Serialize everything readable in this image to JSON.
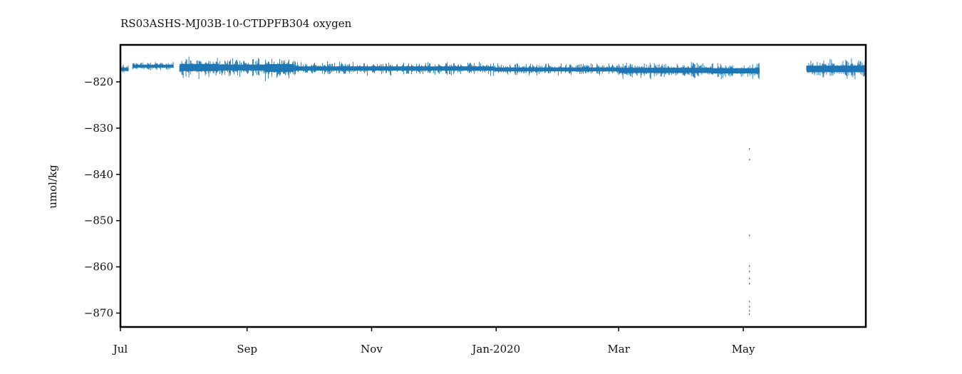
{
  "chart_data": {
    "type": "scatter",
    "title": "RS03ASHS-MJ03B-10-CTDPFB304 oxygen",
    "xlabel": "",
    "ylabel": "umol/kg",
    "x_type": "date",
    "xlim": [
      "2019-07-01",
      "2020-06-30"
    ],
    "ylim": [
      -873,
      -812
    ],
    "grid": false,
    "legend": "none",
    "x_ticks": [
      {
        "date": "2019-07-01",
        "label": "Jul"
      },
      {
        "date": "2019-09-01",
        "label": "Sep"
      },
      {
        "date": "2019-11-01",
        "label": "Nov"
      },
      {
        "date": "2020-01-01",
        "label": "Jan-2020"
      },
      {
        "date": "2020-03-01",
        "label": "Mar"
      },
      {
        "date": "2020-05-01",
        "label": "May"
      }
    ],
    "y_ticks": [
      {
        "value": -820,
        "label": "−820"
      },
      {
        "value": -830,
        "label": "−830"
      },
      {
        "value": -840,
        "label": "−840"
      },
      {
        "value": -850,
        "label": "−850"
      },
      {
        "value": -860,
        "label": "−860"
      },
      {
        "value": -870,
        "label": "−870"
      }
    ],
    "colors": {
      "series": "#1f77b4",
      "axes": "#000000"
    },
    "series": [
      {
        "segments": [
          {
            "start": "2019-07-01",
            "end": "2019-07-05",
            "center": -817.3,
            "spread": 1.0
          },
          {
            "start": "2019-07-07",
            "end": "2019-07-27",
            "center": -816.6,
            "spread": 0.9
          },
          {
            "start": "2019-07-30",
            "end": "2019-08-18",
            "center": -816.9,
            "spread": 2.2
          },
          {
            "start": "2019-08-18",
            "end": "2019-09-10",
            "center": -816.9,
            "spread": 1.8
          },
          {
            "start": "2019-09-10",
            "end": "2019-09-24",
            "center": -817.0,
            "spread": 2.4
          },
          {
            "start": "2019-09-24",
            "end": "2019-12-31",
            "center": -817.1,
            "spread": 1.3
          },
          {
            "start": "2019-12-31",
            "end": "2020-03-01",
            "center": -817.3,
            "spread": 1.2
          },
          {
            "start": "2020-03-01",
            "end": "2020-04-15",
            "center": -817.5,
            "spread": 1.6
          },
          {
            "start": "2020-04-15",
            "end": "2020-05-09",
            "center": -817.6,
            "spread": 1.6
          },
          {
            "start": "2020-06-01",
            "end": "2020-06-30",
            "center": -817.2,
            "spread": 2.0
          }
        ],
        "outliers": [
          {
            "x": "2020-05-01",
            "y": -834.5
          },
          {
            "x": "2020-05-01",
            "y": -836.8
          },
          {
            "x": "2020-05-01",
            "y": -853.2
          },
          {
            "x": "2020-05-01",
            "y": -859.8
          },
          {
            "x": "2020-05-01",
            "y": -861.0
          },
          {
            "x": "2020-05-01",
            "y": -862.5
          },
          {
            "x": "2020-05-01",
            "y": -863.6
          },
          {
            "x": "2020-05-01",
            "y": -867.5
          },
          {
            "x": "2020-05-01",
            "y": -868.6
          },
          {
            "x": "2020-05-01",
            "y": -869.5
          },
          {
            "x": "2020-05-01",
            "y": -870.2
          }
        ]
      }
    ]
  }
}
